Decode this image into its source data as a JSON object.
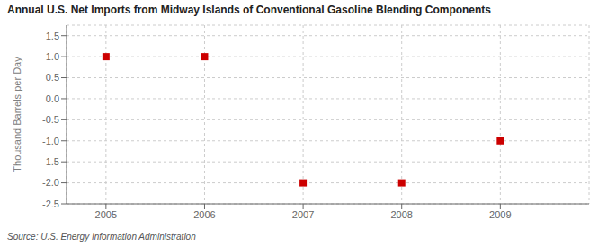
{
  "chart_data": {
    "type": "scatter",
    "title": "Annual U.S. Net Imports from Midway Islands of Conventional Gasoline Blending Components",
    "ylabel": "Thousand Barrels per Day",
    "annotations": [
      "Source: U.S. Energy Information Administration"
    ],
    "x": [
      2005,
      2006,
      2007,
      2008,
      2009
    ],
    "values": [
      1.0,
      1.0,
      -2.0,
      -2.0,
      -1.0
    ],
    "color": "#cc0000",
    "marker": "square",
    "xlim": [
      2004.6,
      2009.9
    ],
    "ylim": [
      -2.5,
      1.75
    ],
    "xticks": [
      2005,
      2006,
      2007,
      2008,
      2009
    ],
    "yticks": [
      -2.5,
      {
        "value": -2.0,
        "label": "-2.0"
      },
      -1.5,
      {
        "value": -1.0,
        "label": "-1.0"
      },
      -0.5,
      {
        "value": 0.0,
        "label": "0.0"
      },
      0.5,
      {
        "value": 1.0,
        "label": "1.0"
      },
      1.5
    ],
    "grid": true
  }
}
